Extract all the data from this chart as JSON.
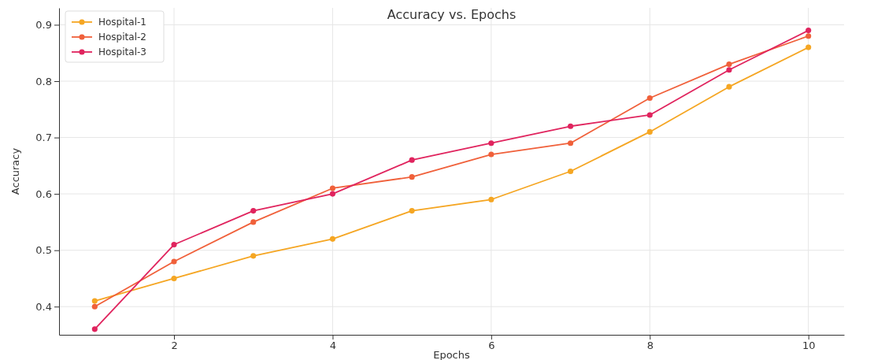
{
  "chart_data": {
    "type": "line",
    "title": "Accuracy vs. Epochs",
    "xlabel": "Epochs",
    "ylabel": "Accuracy",
    "x": [
      1,
      2,
      3,
      4,
      5,
      6,
      7,
      8,
      9,
      10
    ],
    "series": [
      {
        "name": "Hospital-1",
        "color": "#f5a623",
        "values": [
          0.41,
          0.45,
          0.49,
          0.52,
          0.57,
          0.59,
          0.64,
          0.71,
          0.79,
          0.86
        ]
      },
      {
        "name": "Hospital-2",
        "color": "#f0603a",
        "values": [
          0.4,
          0.48,
          0.55,
          0.61,
          0.63,
          0.67,
          0.69,
          0.77,
          0.83,
          0.88
        ]
      },
      {
        "name": "Hospital-3",
        "color": "#e0245e",
        "values": [
          0.36,
          0.51,
          0.57,
          0.6,
          0.66,
          0.69,
          0.72,
          0.74,
          0.82,
          0.89
        ]
      }
    ],
    "xlim": [
      0.55,
      10.45
    ],
    "ylim": [
      0.35,
      0.93
    ],
    "xticks": [
      2,
      4,
      6,
      8,
      10
    ],
    "yticks": [
      {
        "value": 0.4,
        "label": "0.4"
      },
      {
        "value": 0.5,
        "label": "0.5"
      },
      {
        "value": 0.6,
        "label": "0.6"
      },
      {
        "value": 0.7,
        "label": "0.7"
      },
      {
        "value": 0.8,
        "label": "0.8"
      },
      {
        "value": 0.9,
        "label": "0.9"
      }
    ],
    "grid": true,
    "legend": "top left",
    "marker": "circle",
    "line_style": "solid"
  }
}
